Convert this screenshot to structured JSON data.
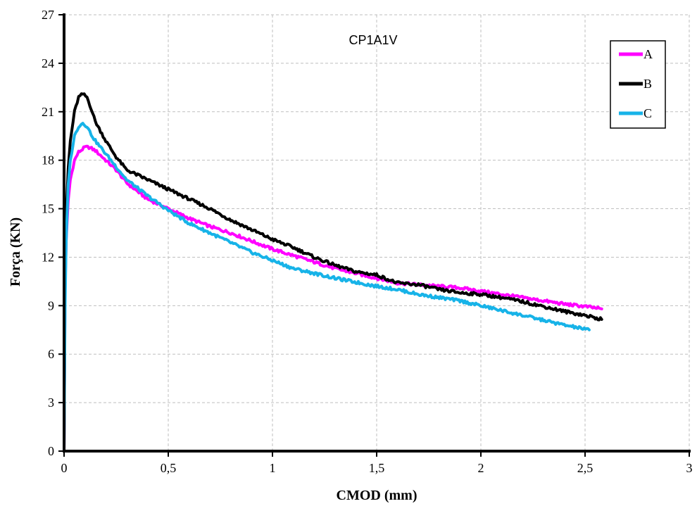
{
  "chart_data": {
    "type": "line",
    "title": "CP1A1V",
    "xlabel": "CMOD (mm)",
    "ylabel": "Força (KN)",
    "xlim": [
      0,
      3
    ],
    "ylim": [
      0,
      27
    ],
    "xticks": [
      0,
      0.5,
      1,
      1.5,
      2,
      2.5,
      3
    ],
    "xtick_labels": [
      "0",
      "0,5",
      "1",
      "1,5",
      "2",
      "2,5",
      "3"
    ],
    "yticks": [
      0,
      3,
      6,
      9,
      12,
      15,
      18,
      21,
      24,
      27
    ],
    "ytick_labels": [
      "0",
      "3",
      "6",
      "9",
      "12",
      "15",
      "18",
      "21",
      "24",
      "27"
    ],
    "grid": true,
    "legend": "top-right",
    "series": [
      {
        "name": "A",
        "color": "#ff00ff",
        "x": [
          0,
          0.005,
          0.01,
          0.02,
          0.03,
          0.05,
          0.07,
          0.1,
          0.12,
          0.15,
          0.2,
          0.25,
          0.3,
          0.4,
          0.5,
          0.6,
          0.7,
          0.8,
          0.9,
          1.0,
          1.1,
          1.2,
          1.3,
          1.4,
          1.5,
          1.6,
          1.7,
          1.8,
          1.9,
          2.0,
          2.1,
          2.2,
          2.3,
          2.4,
          2.5,
          2.58
        ],
        "y": [
          0,
          10,
          13,
          15.5,
          16.8,
          18.0,
          18.5,
          18.8,
          18.8,
          18.6,
          18.0,
          17.4,
          16.6,
          15.6,
          15.0,
          14.4,
          13.9,
          13.5,
          13.0,
          12.5,
          12.1,
          11.7,
          11.3,
          11.0,
          10.7,
          10.4,
          10.3,
          10.2,
          10.1,
          9.9,
          9.7,
          9.5,
          9.3,
          9.1,
          8.95,
          8.8
        ]
      },
      {
        "name": "B",
        "color": "#000000",
        "x": [
          0,
          0.005,
          0.01,
          0.02,
          0.03,
          0.05,
          0.07,
          0.09,
          0.11,
          0.13,
          0.15,
          0.2,
          0.25,
          0.3,
          0.4,
          0.5,
          0.6,
          0.7,
          0.8,
          0.9,
          1.0,
          1.1,
          1.2,
          1.3,
          1.4,
          1.5,
          1.6,
          1.7,
          1.8,
          1.9,
          2.0,
          2.1,
          2.2,
          2.3,
          2.4,
          2.5,
          2.58
        ],
        "y": [
          0,
          11,
          14.5,
          17.5,
          19.2,
          21.0,
          21.9,
          22.1,
          21.9,
          21.2,
          20.4,
          19.2,
          18.2,
          17.4,
          16.8,
          16.2,
          15.6,
          15.0,
          14.3,
          13.7,
          13.1,
          12.6,
          12.0,
          11.5,
          11.1,
          10.9,
          10.4,
          10.3,
          10.0,
          9.8,
          9.7,
          9.5,
          9.25,
          8.95,
          8.65,
          8.4,
          8.15
        ]
      },
      {
        "name": "C",
        "color": "#17b3e8",
        "x": [
          0,
          0.005,
          0.01,
          0.02,
          0.03,
          0.05,
          0.07,
          0.09,
          0.11,
          0.13,
          0.15,
          0.2,
          0.25,
          0.3,
          0.4,
          0.5,
          0.6,
          0.7,
          0.8,
          0.9,
          1.0,
          1.1,
          1.2,
          1.3,
          1.4,
          1.5,
          1.6,
          1.7,
          1.8,
          1.9,
          2.0,
          2.1,
          2.2,
          2.3,
          2.4,
          2.52
        ],
        "y": [
          0,
          9,
          13,
          16.5,
          18.0,
          19.5,
          20.1,
          20.3,
          20.1,
          19.6,
          19.2,
          18.4,
          17.6,
          16.8,
          15.8,
          14.9,
          14.1,
          13.5,
          12.9,
          12.3,
          11.8,
          11.3,
          11.0,
          10.7,
          10.45,
          10.2,
          10.0,
          9.7,
          9.5,
          9.3,
          9.0,
          8.7,
          8.4,
          8.1,
          7.8,
          7.5
        ]
      }
    ]
  }
}
